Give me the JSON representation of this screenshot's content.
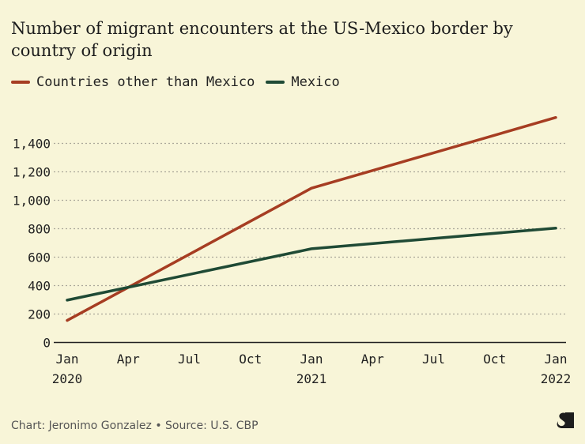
{
  "chart_data": {
    "type": "line",
    "title": "Number of migrant encounters at the US-Mexico border by country of origin",
    "x": [
      "Jan 2020",
      "Jan 2021",
      "Jan 2022"
    ],
    "x_months": [
      0,
      12,
      24
    ],
    "x_ticks": [
      {
        "m": 0,
        "l1": "Jan",
        "l2": "2020"
      },
      {
        "m": 3,
        "l1": "Apr",
        "l2": ""
      },
      {
        "m": 6,
        "l1": "Jul",
        "l2": ""
      },
      {
        "m": 9,
        "l1": "Oct",
        "l2": ""
      },
      {
        "m": 12,
        "l1": "Jan",
        "l2": "2021"
      },
      {
        "m": 15,
        "l1": "Apr",
        "l2": ""
      },
      {
        "m": 18,
        "l1": "Jul",
        "l2": ""
      },
      {
        "m": 21,
        "l1": "Oct",
        "l2": ""
      },
      {
        "m": 24,
        "l1": "Jan",
        "l2": "2022"
      }
    ],
    "y_ticks": [
      0,
      200,
      400,
      600,
      800,
      1000,
      1200,
      1400
    ],
    "y_tick_labels": [
      "0",
      "200",
      "400",
      "600",
      "800",
      "1,000",
      "1,200",
      "1,400"
    ],
    "ylim": [
      0,
      1600
    ],
    "grid": true,
    "legend_position": "top-left",
    "series": [
      {
        "name": "Countries other than Mexico",
        "color": "#a63d22",
        "values": [
          155,
          1085,
          1582
        ]
      },
      {
        "name": "Mexico",
        "color": "#1f4a35",
        "values": [
          298,
          659,
          804
        ]
      }
    ]
  },
  "footer": "Chart: Jeronimo Gonzalez • Source: U.S. CBP",
  "logo": "S"
}
